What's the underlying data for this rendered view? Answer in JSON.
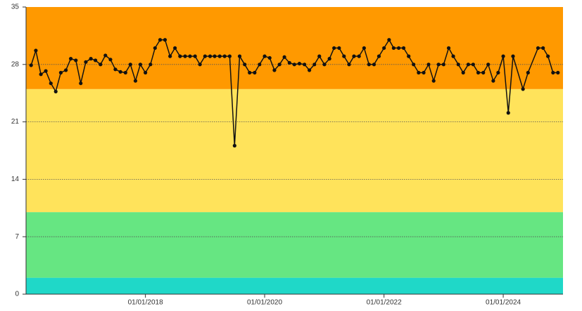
{
  "chart_data": {
    "type": "line",
    "x": [
      "2016-02-01",
      "2016-03-01",
      "2016-04-01",
      "2016-05-01",
      "2016-06-01",
      "2016-07-01",
      "2016-08-01",
      "2016-09-01",
      "2016-10-01",
      "2016-11-01",
      "2016-12-01",
      "2017-01-01",
      "2017-02-01",
      "2017-03-01",
      "2017-04-01",
      "2017-05-01",
      "2017-06-01",
      "2017-07-01",
      "2017-08-01",
      "2017-09-01",
      "2017-10-01",
      "2017-11-01",
      "2017-12-01",
      "2018-01-01",
      "2018-02-01",
      "2018-03-01",
      "2018-04-01",
      "2018-05-01",
      "2018-06-01",
      "2018-07-01",
      "2018-08-01",
      "2018-09-01",
      "2018-10-01",
      "2018-11-01",
      "2018-12-01",
      "2019-01-01",
      "2019-02-01",
      "2019-03-01",
      "2019-04-01",
      "2019-05-01",
      "2019-06-01",
      "2019-07-01",
      "2019-08-01",
      "2019-09-01",
      "2019-10-01",
      "2019-11-01",
      "2019-12-01",
      "2020-01-01",
      "2020-02-01",
      "2020-03-01",
      "2020-04-01",
      "2020-05-01",
      "2020-06-01",
      "2020-07-01",
      "2020-08-01",
      "2020-09-01",
      "2020-10-01",
      "2020-11-01",
      "2020-12-01",
      "2021-01-01",
      "2021-02-01",
      "2021-03-01",
      "2021-04-01",
      "2021-05-01",
      "2021-06-01",
      "2021-07-01",
      "2021-08-01",
      "2021-09-01",
      "2021-10-01",
      "2021-11-01",
      "2021-12-01",
      "2022-01-01",
      "2022-02-01",
      "2022-03-01",
      "2022-04-01",
      "2022-05-01",
      "2022-06-01",
      "2022-07-01",
      "2022-08-01",
      "2022-09-01",
      "2022-10-01",
      "2022-11-01",
      "2022-12-01",
      "2023-01-01",
      "2023-02-01",
      "2023-03-01",
      "2023-04-01",
      "2023-05-01",
      "2023-06-01",
      "2023-07-01",
      "2023-08-01",
      "2023-09-01",
      "2023-10-01",
      "2023-11-01",
      "2023-12-01",
      "2024-01-01",
      "2024-02-01",
      "2024-03-01",
      "2024-05-01",
      "2024-06-01",
      "2024-08-01",
      "2024-09-01",
      "2024-10-01",
      "2024-11-01",
      "2024-12-01"
    ],
    "values": [
      27.9,
      29.7,
      26.8,
      27.2,
      25.7,
      24.7,
      27,
      27.3,
      28.7,
      28.5,
      25.7,
      28.3,
      28.7,
      28.5,
      28,
      29.1,
      28.6,
      27.4,
      27.1,
      27,
      28,
      26,
      28,
      27,
      28,
      30,
      31,
      31,
      29,
      30,
      29,
      29,
      29,
      29,
      28,
      29,
      29,
      29,
      29,
      29,
      29,
      18.1,
      29,
      28,
      27,
      27,
      28,
      29,
      28.8,
      27.3,
      28,
      28.9,
      28.2,
      28,
      28.1,
      28,
      27.3,
      28,
      29,
      28,
      28.7,
      30,
      30,
      29,
      28,
      29,
      29,
      30,
      28,
      28,
      29,
      30,
      31,
      30,
      30,
      30,
      29,
      28,
      27,
      27,
      28,
      26,
      28,
      28,
      30,
      29,
      28,
      27,
      28,
      28,
      27,
      27,
      28,
      26,
      27,
      29,
      22.1,
      29,
      25,
      27,
      30,
      30,
      29,
      27,
      27
    ],
    "color": "#111111",
    "xlim": [
      "2016-01-01",
      "2025-01-01"
    ],
    "xticks": [
      {
        "value": "2018-01-01",
        "label": "01/01/2018"
      },
      {
        "value": "2020-01-01",
        "label": "01/01/2020"
      },
      {
        "value": "2022-01-01",
        "label": "01/01/2022"
      },
      {
        "value": "2024-01-01",
        "label": "01/01/2024"
      }
    ],
    "ylim": [
      0,
      35
    ],
    "yticks": [
      0,
      7,
      14,
      21,
      28,
      35
    ],
    "grid": true,
    "bands": [
      {
        "from": 0,
        "to": 2,
        "color": "#1fd8c8"
      },
      {
        "from": 2,
        "to": 10,
        "color": "#66e682"
      },
      {
        "from": 10,
        "to": 25,
        "color": "#ffe35b"
      },
      {
        "from": 25,
        "to": 35,
        "color": "#ff9900"
      }
    ]
  }
}
